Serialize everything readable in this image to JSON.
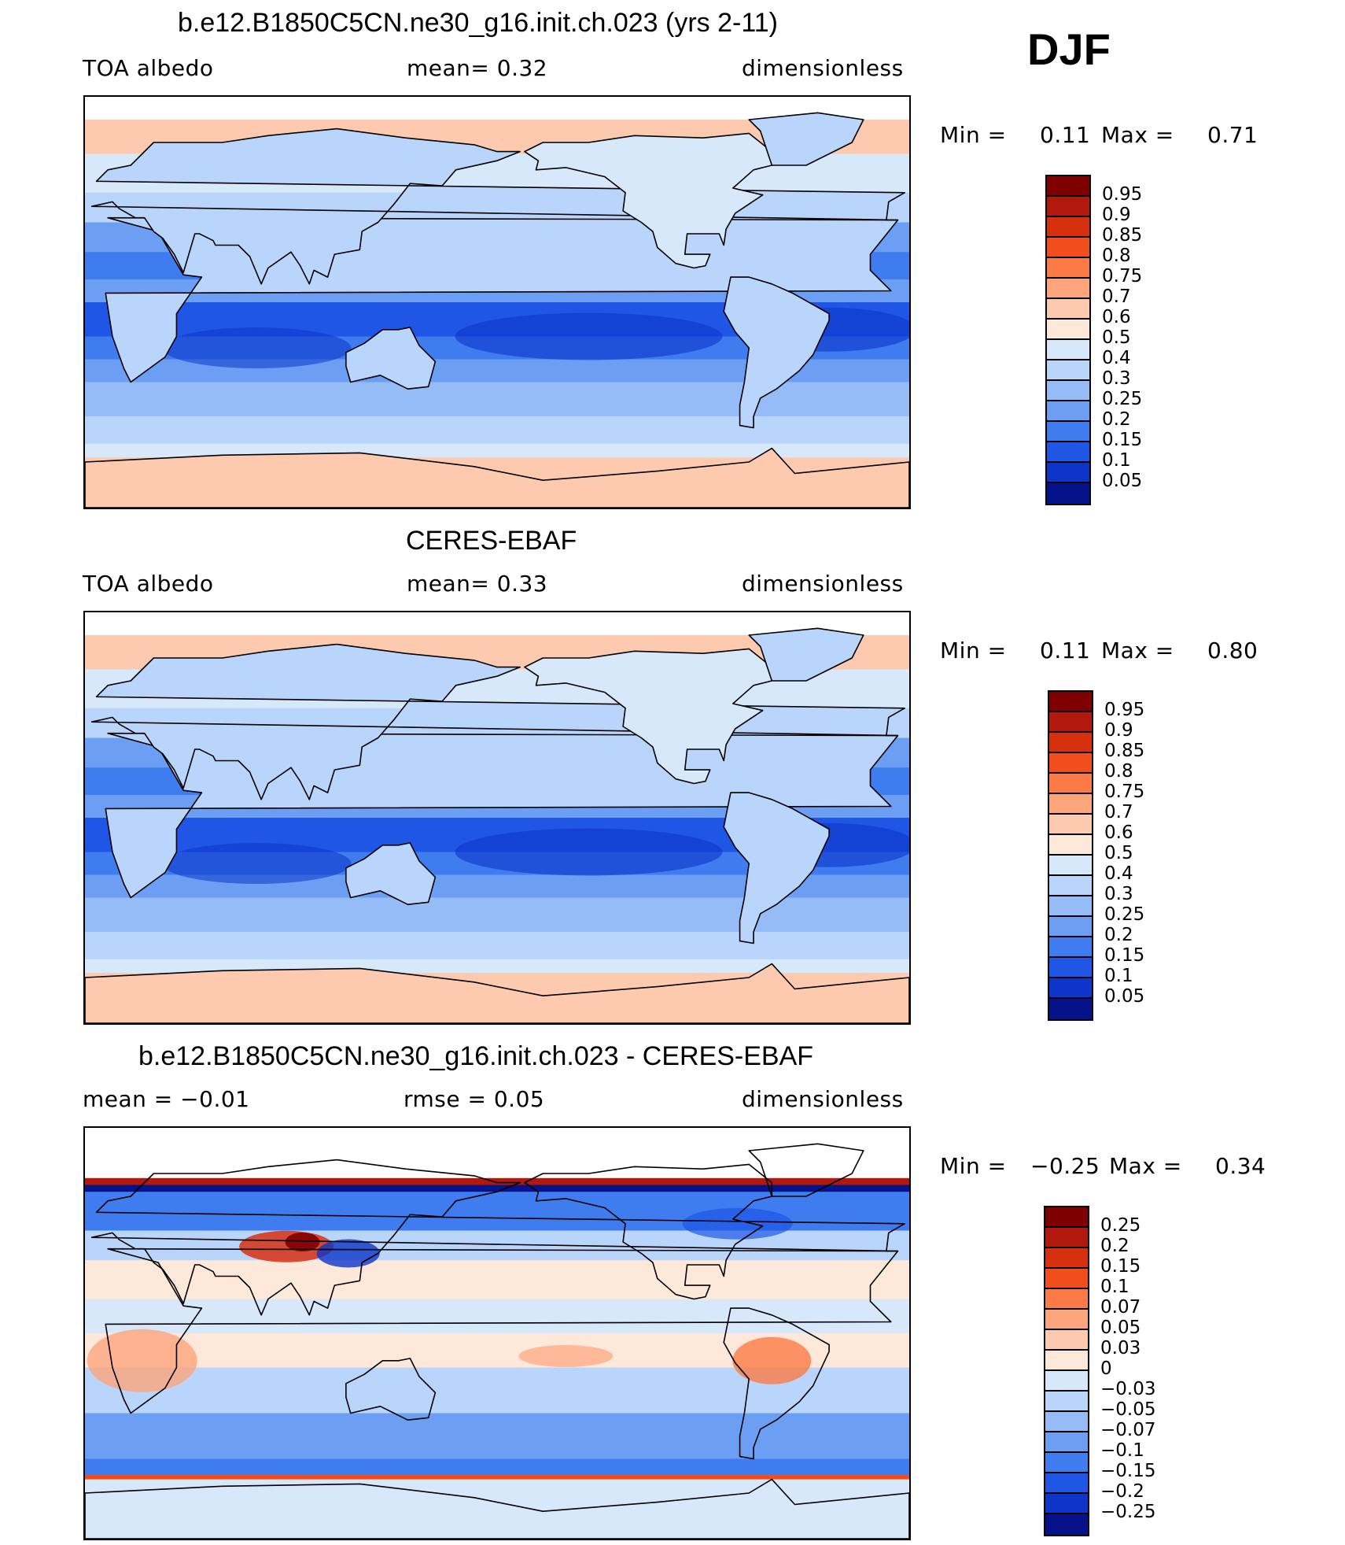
{
  "season": "DJF",
  "panels": [
    {
      "id": "model",
      "title": "b.e12.B1850C5CN.ne30_g16.init.ch.023 (yrs 2-11)",
      "left_label": "TOA  albedo",
      "center_label": "mean=    0.32",
      "right_label": "dimensionless",
      "min_label": "Min =",
      "min_value": "0.11",
      "max_label": "Max =",
      "max_value": "0.71",
      "colorbar_labels": [
        "0.95",
        "0.9",
        "0.85",
        "0.8",
        "0.75",
        "0.7",
        "0.6",
        "0.5",
        "0.4",
        "0.3",
        "0.25",
        "0.2",
        "0.15",
        "0.1",
        "0.05"
      ]
    },
    {
      "id": "obs",
      "title": "CERES-EBAF",
      "left_label": "TOA  albedo",
      "center_label": "mean=    0.33",
      "right_label": "dimensionless",
      "min_label": "Min =",
      "min_value": "0.11",
      "max_label": "Max =",
      "max_value": "0.80",
      "colorbar_labels": [
        "0.95",
        "0.9",
        "0.85",
        "0.8",
        "0.75",
        "0.7",
        "0.6",
        "0.5",
        "0.4",
        "0.3",
        "0.25",
        "0.2",
        "0.15",
        "0.1",
        "0.05"
      ]
    },
    {
      "id": "diff",
      "title": "b.e12.B1850C5CN.ne30_g16.init.ch.023 - CERES-EBAF",
      "left_label": "mean =  −0.01",
      "center_label": "rmse =    0.05",
      "right_label": "dimensionless",
      "min_label": "Min =",
      "min_value": "−0.25",
      "max_label": "Max =",
      "max_value": "0.34",
      "colorbar_labels": [
        "0.25",
        "0.2",
        "0.15",
        "0.1",
        "0.07",
        "0.05",
        "0.03",
        "0",
        "−0.03",
        "−0.05",
        "−0.07",
        "−0.1",
        "−0.15",
        "−0.2",
        "−0.25"
      ]
    }
  ],
  "colors": {
    "abs_scale": [
      "#7f0000",
      "#b2180b",
      "#d7300f",
      "#f24d1c",
      "#fb7a45",
      "#fca57c",
      "#fdcab0",
      "#fde8da",
      "#d7e8fb",
      "#b9d5fb",
      "#95bcf7",
      "#6c9ff3",
      "#3f7cf0",
      "#1f56e6",
      "#0d35c9",
      "#05128a"
    ],
    "diff_scale": [
      "#7f0000",
      "#b2180b",
      "#d7300f",
      "#f24d1c",
      "#fb7a45",
      "#fca57c",
      "#fdcab0",
      "#fde8da",
      "#d7e8fb",
      "#b9d5fb",
      "#95bcf7",
      "#6c9ff3",
      "#3f7cf0",
      "#1f56e6",
      "#0d35c9",
      "#05128a"
    ],
    "coastline": "#000000"
  },
  "chart_data": [
    {
      "type": "heatmap",
      "title": "b.e12.B1850C5CN.ne30_g16.init.ch.023 (yrs 2-11)",
      "variable": "TOA  albedo",
      "units": "dimensionless",
      "mean": 0.32,
      "min": 0.11,
      "max": 0.71,
      "levels": [
        0.05,
        0.1,
        0.15,
        0.2,
        0.25,
        0.3,
        0.4,
        0.5,
        0.6,
        0.7,
        0.75,
        0.8,
        0.85,
        0.9,
        0.95
      ]
    },
    {
      "type": "heatmap",
      "title": "CERES-EBAF",
      "variable": "TOA  albedo",
      "units": "dimensionless",
      "mean": 0.33,
      "min": 0.11,
      "max": 0.8,
      "levels": [
        0.05,
        0.1,
        0.15,
        0.2,
        0.25,
        0.3,
        0.4,
        0.5,
        0.6,
        0.7,
        0.75,
        0.8,
        0.85,
        0.9,
        0.95
      ]
    },
    {
      "type": "heatmap",
      "title": "b.e12.B1850C5CN.ne30_g16.init.ch.023 - CERES-EBAF",
      "units": "dimensionless",
      "mean": -0.01,
      "rmse": 0.05,
      "min": -0.25,
      "max": 0.34,
      "levels": [
        -0.25,
        -0.2,
        -0.15,
        -0.1,
        -0.07,
        -0.05,
        -0.03,
        0,
        0.03,
        0.05,
        0.07,
        0.1,
        0.15,
        0.2,
        0.25
      ]
    }
  ]
}
